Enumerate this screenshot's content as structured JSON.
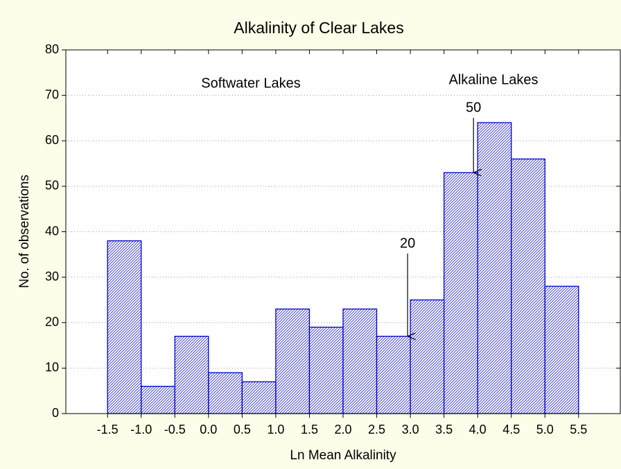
{
  "chart_data": {
    "type": "histogram",
    "title": "Alkalinity of Clear Lakes",
    "x_label": "Ln Mean Alkalinity",
    "y_label": "No. of observations",
    "bins": [
      -1.5,
      {
        "value": -1,
        "label": "-1.0"
      },
      -0.5,
      {
        "value": 0,
        "label": "0.0"
      },
      0.5,
      {
        "value": 1,
        "label": "1.0"
      },
      1.5,
      {
        "value": 2,
        "label": "2.0"
      },
      2.5,
      {
        "value": 3,
        "label": "3.0"
      },
      3.5,
      {
        "value": 4,
        "label": "4.0"
      },
      4.5,
      {
        "value": 5,
        "label": "5.0"
      },
      5.5
    ],
    "values": [
      38,
      6,
      17,
      9,
      7,
      23,
      19,
      23,
      17,
      25,
      53,
      64,
      56,
      28
    ],
    "color": "#0000cc",
    "xlim": [
      -2.12,
      6.12
    ],
    "ylim": [
      0,
      80
    ],
    "yticks": [
      0,
      10,
      20,
      30,
      40,
      50,
      60,
      70,
      80
    ],
    "grid": true,
    "annotations": [
      "Softwater Lakes",
      "Alkaline Lakes",
      "50",
      "20"
    ]
  }
}
